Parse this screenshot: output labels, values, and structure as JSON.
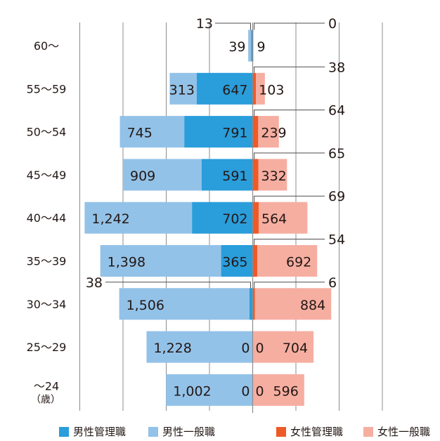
{
  "chart_data": {
    "type": "bar",
    "orientation": "horizontal",
    "layout": "population-pyramid",
    "title": "",
    "age_groups": [
      "60〜",
      "55〜59",
      "50〜54",
      "45〜49",
      "40〜44",
      "35〜39",
      "30〜34",
      "25〜29",
      "〜24"
    ],
    "age_unit_label": "（歳）",
    "series": [
      {
        "name": "男性管理職",
        "side": "left",
        "color": "#2a9ddb",
        "values": [
          13,
          647,
          791,
          591,
          702,
          365,
          38,
          0,
          0
        ]
      },
      {
        "name": "男性一般職",
        "side": "left",
        "color": "#93c2e8",
        "values": [
          39,
          313,
          745,
          909,
          1242,
          1398,
          1506,
          1228,
          1002
        ]
      },
      {
        "name": "女性管理職",
        "side": "right",
        "color": "#ee5a27",
        "values": [
          0,
          38,
          64,
          65,
          69,
          54,
          6,
          0,
          0
        ]
      },
      {
        "name": "女性一般職",
        "side": "right",
        "color": "#f6aea1",
        "values": [
          9,
          103,
          239,
          332,
          564,
          692,
          884,
          704,
          596
        ]
      }
    ],
    "data_labels": {
      "male_manager": [
        "13",
        "647",
        "791",
        "591",
        "702",
        "365",
        "38",
        "0",
        "0"
      ],
      "male_general": [
        "39",
        "313",
        "745",
        "909",
        "1,242",
        "1,398",
        "1,506",
        "1,228",
        "1,002"
      ],
      "female_manager": [
        "0",
        "38",
        "64",
        "65",
        "69",
        "54",
        "6",
        "0",
        "0"
      ],
      "female_general": [
        "9",
        "103",
        "239",
        "332",
        "564",
        "692",
        "884",
        "704",
        "596"
      ]
    },
    "xlim_per_side": [
      0,
      2000
    ],
    "gridlines": [
      -2000,
      -1500,
      -1000,
      -500,
      0,
      500,
      1000,
      1500
    ],
    "grid": true,
    "legend_position": "bottom"
  },
  "legend": [
    {
      "label": "男性管理職",
      "color": "#2a9ddb"
    },
    {
      "label": "男性一般職",
      "color": "#93c2e8"
    },
    {
      "label": "女性管理職",
      "color": "#ee5a27"
    },
    {
      "label": "女性一般職",
      "color": "#f6aea1"
    }
  ]
}
